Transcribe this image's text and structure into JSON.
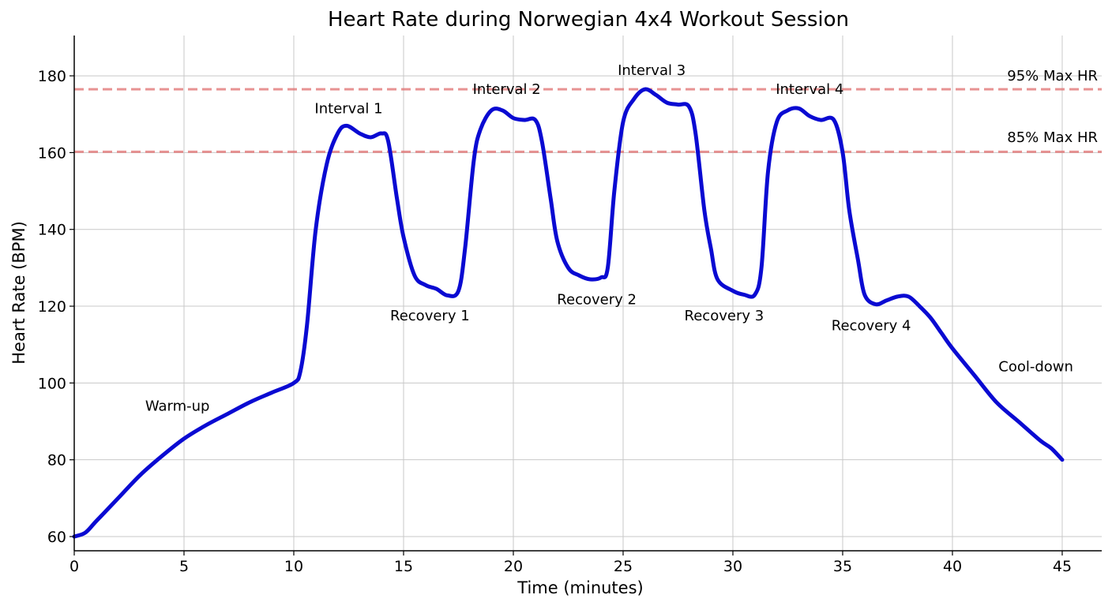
{
  "chart_data": {
    "type": "line",
    "title": "Heart Rate during Norwegian 4x4 Workout Session",
    "xlabel": "Time (minutes)",
    "ylabel": "Heart Rate (BPM)",
    "xlim": [
      0,
      46.8
    ],
    "ylim": [
      56.3,
      190.5
    ],
    "xticks": [
      0,
      5,
      10,
      15,
      20,
      25,
      30,
      35,
      40,
      45
    ],
    "yticks": [
      60,
      80,
      100,
      120,
      140,
      160,
      180
    ],
    "grid": true,
    "series": [
      {
        "color": "#0a0ad2",
        "x": [
          0,
          0.5,
          1,
          2,
          3,
          4,
          5,
          6,
          7,
          8,
          9,
          10,
          10.3,
          10.6,
          11,
          11.5,
          12,
          12.4,
          13,
          13.5,
          14,
          14.3,
          14.7,
          15,
          15.5,
          16,
          16.5,
          17,
          17.5,
          17.8,
          18.2,
          18.5,
          19,
          19.5,
          20,
          20.5,
          21,
          21.3,
          21.7,
          22,
          22.5,
          23,
          23.5,
          24,
          24.3,
          24.6,
          25,
          25.5,
          26,
          26.5,
          27,
          27.5,
          28,
          28.3,
          28.7,
          29,
          29.3,
          30,
          30.5,
          31,
          31.3,
          31.6,
          32,
          32.5,
          33,
          33.5,
          34,
          34.6,
          35,
          35.3,
          35.7,
          36,
          36.5,
          37,
          37.5,
          38,
          38.5,
          39,
          39.5,
          40,
          41,
          42,
          43,
          44,
          44.5,
          45
        ],
        "y": [
          60,
          61,
          64,
          70,
          76,
          81,
          85.5,
          89,
          92,
          95,
          97.5,
          100,
          103,
          115,
          140,
          157,
          165,
          167,
          165,
          164,
          165,
          163,
          148,
          138,
          128,
          125.5,
          124.5,
          122.8,
          124,
          135,
          158,
          166,
          171,
          171,
          169,
          168.5,
          168.5,
          163,
          148,
          137,
          130,
          128,
          127,
          127.5,
          130,
          150,
          168,
          174,
          176.5,
          175,
          173,
          172.5,
          172,
          165,
          145,
          135,
          127,
          124,
          123,
          123,
          130,
          155,
          168,
          171,
          171.5,
          169.5,
          168.5,
          168.5,
          160,
          145,
          132,
          123,
          120.5,
          121.5,
          122.5,
          122.5,
          120,
          117,
          113,
          109,
          102,
          95,
          90,
          85,
          83,
          80
        ]
      }
    ],
    "reference_lines": [
      {
        "label": "95% Max HR",
        "y": 176.5,
        "color": "#e07070",
        "style": "dashed",
        "label_x": 44.3,
        "label_y": 180
      },
      {
        "label": "85% Max HR",
        "y": 160.2,
        "color": "#e07070",
        "style": "dashed",
        "label_x": 44.3,
        "label_y": 164
      }
    ],
    "annotations": [
      {
        "text": "Warm-up",
        "x": 4.7,
        "y": 94
      },
      {
        "text": "Interval 1",
        "x": 12.5,
        "y": 171.5
      },
      {
        "text": "Interval 2",
        "x": 19.7,
        "y": 176.5
      },
      {
        "text": "Interval 3",
        "x": 26.3,
        "y": 181.5
      },
      {
        "text": "Interval 4",
        "x": 33.5,
        "y": 176.5
      },
      {
        "text": "Recovery 1",
        "x": 16.2,
        "y": 117.5
      },
      {
        "text": "Recovery 2",
        "x": 23.8,
        "y": 121.8
      },
      {
        "text": "Recovery 3",
        "x": 29.6,
        "y": 117.5
      },
      {
        "text": "Recovery 4",
        "x": 36.3,
        "y": 115
      },
      {
        "text": "Cool-down",
        "x": 43.8,
        "y": 104.3
      }
    ]
  }
}
